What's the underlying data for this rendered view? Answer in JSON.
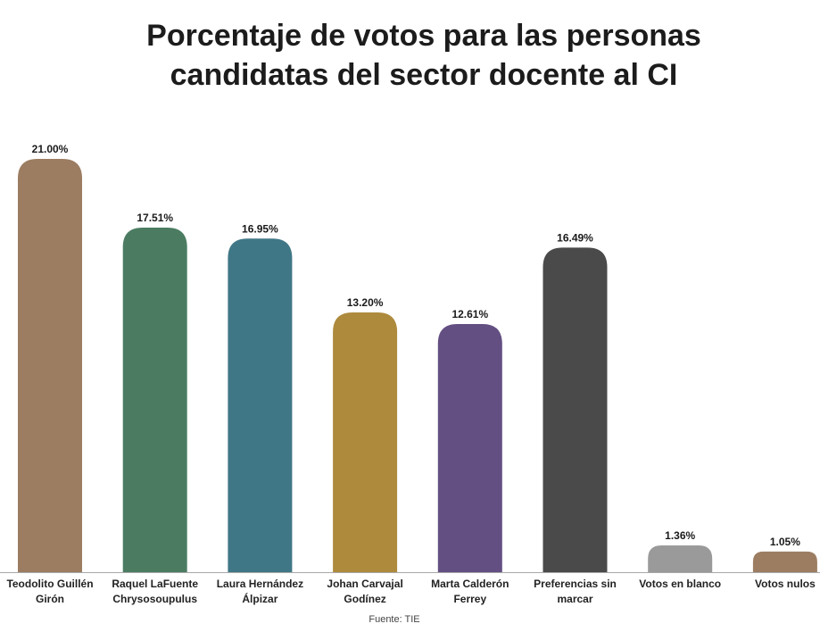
{
  "chart_title": "Porcentaje de votos para las personas candidatas del sector docente al CI",
  "source": "Fuente: TIE",
  "chart_data": {
    "type": "bar",
    "title": "Porcentaje de votos para las personas candidatas del sector docente al CI",
    "xlabel": "",
    "ylabel": "",
    "ylim": [
      0,
      21
    ],
    "grid": false,
    "categories": [
      [
        "Teodolito Guillén",
        "Girón"
      ],
      [
        "Raquel LaFuente",
        "Chrysosoupulus"
      ],
      [
        "Laura Hernández",
        "Álpizar"
      ],
      [
        "Johan Carvajal",
        "Godínez"
      ],
      [
        "Marta Calderón",
        "Ferrey"
      ],
      [
        "Preferencias sin",
        "marcar"
      ],
      [
        "Votos en blanco"
      ],
      [
        "Votos nulos"
      ]
    ],
    "values": [
      21.0,
      17.51,
      16.95,
      13.2,
      12.61,
      16.49,
      1.36,
      1.05
    ],
    "value_labels": [
      "21.00%",
      "17.51%",
      "16.95%",
      "13.20%",
      "12.61%",
      "16.49%",
      "1.36%",
      "1.05%"
    ],
    "colors": [
      "#9c7d62",
      "#4b7c62",
      "#407786",
      "#ad8a3c",
      "#634f82",
      "#4a4a4a",
      "#9a9a9a",
      "#9c7d62"
    ]
  }
}
